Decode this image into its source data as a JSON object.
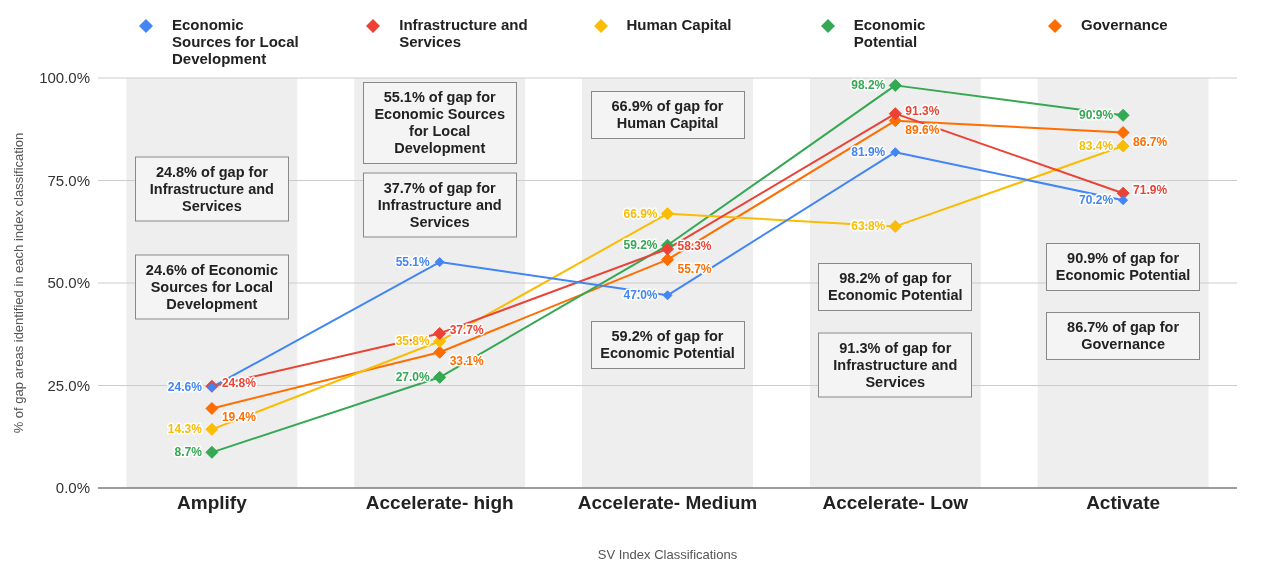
{
  "chart_data": {
    "type": "line",
    "xlabel": "SV Index Classifications",
    "ylabel": "% of gap areas identified in each index classification",
    "categories": [
      "Amplify",
      "Accelerate- high",
      "Accelerate- Medium",
      "Accelerate- Low",
      "Activate"
    ],
    "series": [
      {
        "name": "Economic Sources for Local Development",
        "color": "#4285f4",
        "values": [
          24.6,
          55.1,
          47.0,
          81.9,
          70.2
        ],
        "value_labels": [
          "24.6%",
          "55.1%",
          "47.0%",
          "81.9%",
          "70.2%"
        ]
      },
      {
        "name": "Infrastructure and Services",
        "color": "#ea4335",
        "values": [
          24.8,
          37.7,
          58.3,
          91.3,
          71.9
        ],
        "value_labels": [
          "24.8%",
          "37.7%",
          "58.3%",
          "91.3%",
          "71.9%"
        ]
      },
      {
        "name": "Human Capital",
        "color": "#fbbc04",
        "values": [
          14.3,
          35.8,
          66.9,
          63.8,
          83.4
        ],
        "value_labels": [
          "14.3%",
          "35.8%",
          "66.9%",
          "63.8%",
          "83.4%"
        ]
      },
      {
        "name": "Economic Potential",
        "color": "#34a853",
        "values": [
          8.7,
          27.0,
          59.2,
          98.2,
          90.9
        ],
        "value_labels": [
          "8.7%",
          "27.0%",
          "59.2%",
          "98.2%",
          "90.9%"
        ]
      },
      {
        "name": "Governance",
        "color": "#ff6d01",
        "values": [
          19.4,
          33.1,
          55.7,
          89.6,
          86.7
        ],
        "value_labels": [
          "19.4%",
          "33.1%",
          "55.7%",
          "89.6%",
          "86.7%"
        ]
      }
    ],
    "ylim": [
      0,
      100
    ],
    "yticks": [
      {
        "value": 0,
        "label": "0.0%"
      },
      {
        "value": 25,
        "label": "25.0%"
      },
      {
        "value": 50,
        "label": "50.0%"
      },
      {
        "value": 75,
        "label": "75.0%"
      },
      {
        "value": 100,
        "label": "100.0%"
      }
    ],
    "bands": [
      {
        "axis": "x",
        "from": "Amplify",
        "to": "Amplify",
        "color": "#eeeeee"
      },
      {
        "axis": "x",
        "from": "Accelerate- high",
        "to": "Accelerate- high",
        "color": "#eeeeee"
      },
      {
        "axis": "x",
        "from": "Accelerate- Medium",
        "to": "Accelerate- Medium",
        "color": "#eeeeee"
      },
      {
        "axis": "x",
        "from": "Accelerate- Low",
        "to": "Accelerate- Low",
        "color": "#eeeeee"
      },
      {
        "axis": "x",
        "from": "Activate",
        "to": "Activate",
        "color": "#eeeeee"
      }
    ],
    "grid": "y",
    "legend": "top",
    "marker": "diamond",
    "line_style": "solid",
    "annotations": [
      "24.8% of gap for Infrastructure and Services",
      "24.6% of Economic Sources for Local Development",
      "55.1% of gap for Economic Sources for Local Development",
      "37.7% of gap for Infrastructure and Services",
      "66.9% of gap for Human Capital",
      "59.2% of gap for Economic Potential",
      "98.2% of gap for Economic Potential",
      "91.3% of gap for Infrastructure and Services",
      "90.9% of gap for Economic Potential",
      "86.7% of gap for Governance"
    ]
  }
}
